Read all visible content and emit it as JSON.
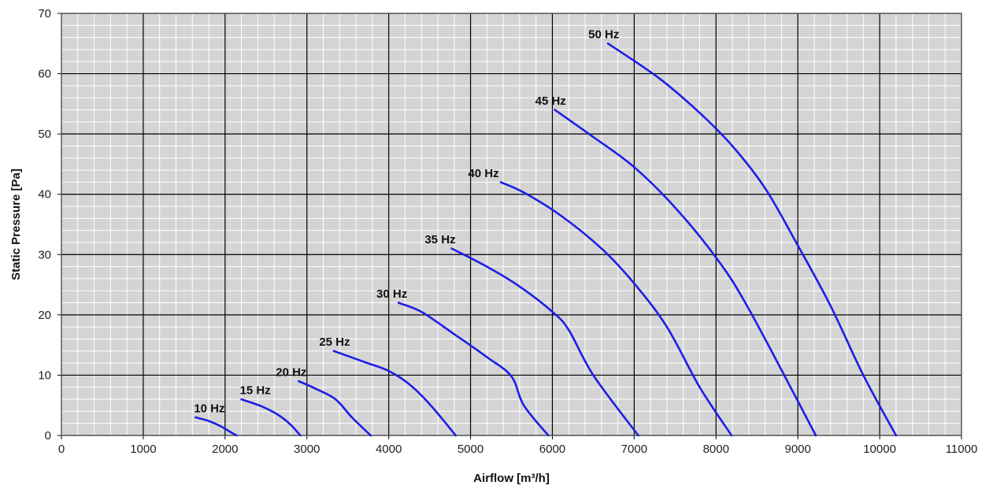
{
  "chart_data": {
    "type": "line",
    "xlabel": "Airflow [m³/h]",
    "ylabel": "Static Pressure  [Pa]",
    "xlim": [
      0,
      11000
    ],
    "ylim": [
      0,
      70
    ],
    "xticks": [
      0,
      1000,
      2000,
      3000,
      4000,
      5000,
      6000,
      7000,
      8000,
      9000,
      10000,
      11000
    ],
    "yticks": [
      0,
      10,
      20,
      30,
      40,
      50,
      60,
      70
    ],
    "x_minor_step": 200,
    "y_minor_step": 2,
    "grid": true,
    "colors": {
      "plot_background": "#d4d4d4",
      "major_grid": "#000000",
      "minor_grid": "#ffffff",
      "curve": "#1e1ee8"
    },
    "series": [
      {
        "name": "10 Hz",
        "label_at": [
          1620,
          3.6
        ],
        "points": [
          [
            1640,
            3
          ],
          [
            1800,
            2.4
          ],
          [
            1950,
            1.5
          ],
          [
            2050,
            0.7
          ],
          [
            2140,
            0
          ]
        ]
      },
      {
        "name": "15 Hz",
        "label_at": [
          2180,
          6.6
        ],
        "points": [
          [
            2200,
            6
          ],
          [
            2450,
            4.8
          ],
          [
            2650,
            3.4
          ],
          [
            2800,
            1.8
          ],
          [
            2920,
            0
          ]
        ]
      },
      {
        "name": "20 Hz",
        "label_at": [
          2620,
          9.6
        ],
        "points": [
          [
            2900,
            9
          ],
          [
            3100,
            7.8
          ],
          [
            3350,
            6
          ],
          [
            3550,
            3
          ],
          [
            3780,
            0
          ]
        ]
      },
      {
        "name": "25 Hz",
        "label_at": [
          3150,
          14.6
        ],
        "points": [
          [
            3330,
            14
          ],
          [
            3700,
            12.2
          ],
          [
            4000,
            10.7
          ],
          [
            4250,
            8.5
          ],
          [
            4500,
            5.2
          ],
          [
            4820,
            0
          ]
        ]
      },
      {
        "name": "30 Hz",
        "label_at": [
          3850,
          22.6
        ],
        "points": [
          [
            4120,
            22
          ],
          [
            4400,
            20.5
          ],
          [
            4800,
            16.8
          ],
          [
            5200,
            13
          ],
          [
            5500,
            9.8
          ],
          [
            5650,
            5
          ],
          [
            5950,
            0
          ]
        ]
      },
      {
        "name": "35  Hz",
        "label_at": [
          4440,
          31.6
        ],
        "points": [
          [
            4770,
            31
          ],
          [
            5200,
            28
          ],
          [
            5600,
            24.7
          ],
          [
            6000,
            20.5
          ],
          [
            6200,
            17.5
          ],
          [
            6500,
            10
          ],
          [
            7050,
            0
          ]
        ]
      },
      {
        "name": "40 Hz",
        "label_at": [
          4970,
          42.6
        ],
        "points": [
          [
            5370,
            42
          ],
          [
            5650,
            40.3
          ],
          [
            6100,
            36.5
          ],
          [
            6600,
            31
          ],
          [
            7000,
            25.2
          ],
          [
            7400,
            18
          ],
          [
            7800,
            8
          ],
          [
            8190,
            0
          ]
        ]
      },
      {
        "name": "45 Hz",
        "label_at": [
          5790,
          54.6
        ],
        "points": [
          [
            6030,
            54
          ],
          [
            6500,
            49.5
          ],
          [
            7000,
            44.5
          ],
          [
            7500,
            37.8
          ],
          [
            8000,
            29.5
          ],
          [
            8400,
            21
          ],
          [
            9220,
            0
          ]
        ]
      },
      {
        "name": "50 Hz",
        "label_at": [
          6440,
          65.6
        ],
        "points": [
          [
            6680,
            65
          ],
          [
            7300,
            59.3
          ],
          [
            7800,
            53.5
          ],
          [
            8200,
            48
          ],
          [
            8600,
            41
          ],
          [
            9000,
            31.5
          ],
          [
            9400,
            21.5
          ],
          [
            9800,
            10
          ],
          [
            10200,
            0
          ]
        ]
      }
    ]
  }
}
